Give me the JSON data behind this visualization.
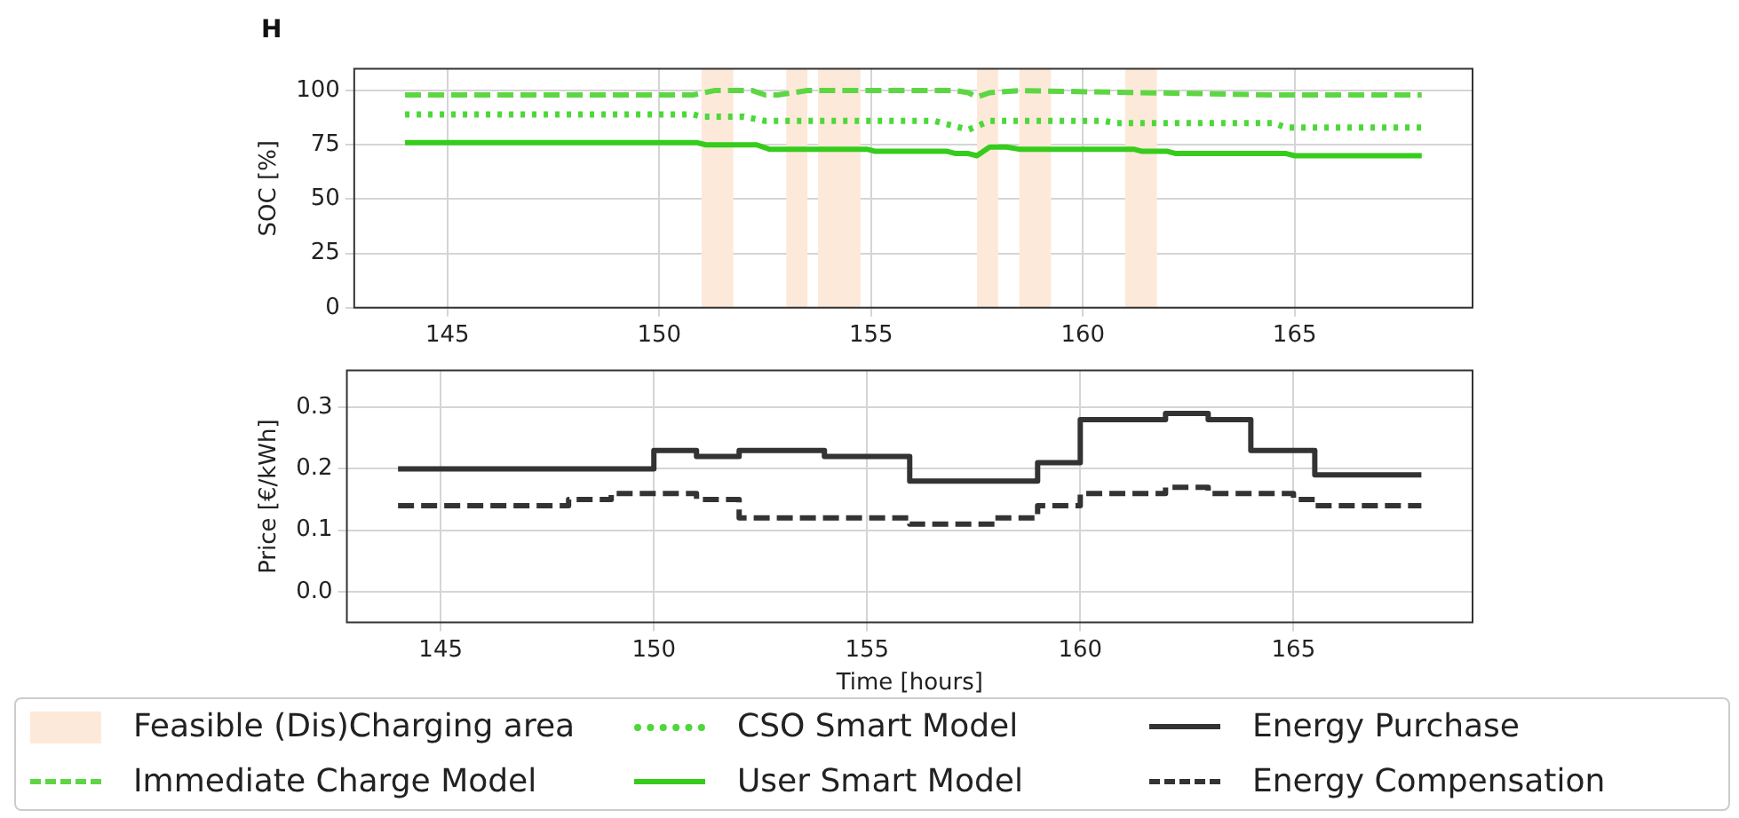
{
  "chart_data": [
    {
      "type": "line",
      "title": "H",
      "ylabel": "SOC [%]",
      "xlim": [
        142.8,
        169.2
      ],
      "xticks": [
        145,
        150,
        155,
        160,
        165
      ],
      "ylim": [
        0,
        110
      ],
      "yticks": [
        0,
        25,
        50,
        75,
        100
      ],
      "grid": true,
      "legend": "bottom",
      "marker": "none",
      "bands": [
        {
          "axis": "x",
          "from": 151.0,
          "to": 151.75,
          "label": "Feasible (Dis)Charging area",
          "color": "#fde9da"
        },
        {
          "axis": "x",
          "from": 153.0,
          "to": 153.5,
          "color": "#fde9da"
        },
        {
          "axis": "x",
          "from": 153.75,
          "to": 154.75,
          "color": "#fde9da"
        },
        {
          "axis": "x",
          "from": 157.5,
          "to": 158.0,
          "color": "#fde9da"
        },
        {
          "axis": "x",
          "from": 158.5,
          "to": 159.25,
          "color": "#fde9da"
        },
        {
          "axis": "x",
          "from": 161.0,
          "to": 161.75,
          "color": "#fde9da"
        }
      ],
      "series": [
        {
          "name": "Immediate Charge Model",
          "color": "#5dd644",
          "line_style": "dashed",
          "x": [
            144,
            150.8,
            151.3,
            152.2,
            152.5,
            152.8,
            153.5,
            157.0,
            157.3,
            157.5,
            157.8,
            158.5,
            164.5,
            168
          ],
          "values": [
            98,
            98,
            100,
            100,
            98,
            98,
            100,
            100,
            99,
            97,
            99,
            100,
            98,
            98
          ]
        },
        {
          "name": "CSO Smart Model",
          "color": "#4cd838",
          "line_style": "dotted",
          "x": [
            144,
            150.8,
            151.0,
            152.0,
            152.5,
            156.5,
            157.3,
            157.8,
            160.5,
            160.8,
            164.5,
            164.8,
            168
          ],
          "values": [
            89,
            89,
            88,
            88,
            86,
            86,
            82,
            86,
            86,
            85,
            85,
            83,
            83
          ]
        },
        {
          "name": "User Smart Model",
          "color": "#36cc1c",
          "line_style": "solid",
          "x": [
            144,
            150.9,
            151.1,
            152.3,
            152.6,
            154.9,
            155.1,
            156.8,
            157.0,
            157.3,
            157.5,
            157.8,
            158.2,
            158.5,
            161.2,
            161.4,
            162.0,
            162.2,
            164.8,
            165.0,
            168
          ],
          "values": [
            76,
            76,
            75,
            75,
            73,
            73,
            72,
            72,
            71,
            71,
            70,
            74,
            74,
            73,
            73,
            72,
            72,
            71,
            71,
            70,
            70
          ]
        }
      ]
    },
    {
      "type": "step",
      "xlabel": "Time [hours]",
      "ylabel": "Price [€/kWh]",
      "xlim": [
        142.8,
        169.2
      ],
      "xticks": [
        145,
        150,
        155,
        160,
        165
      ],
      "ylim": [
        -0.05,
        0.36
      ],
      "yticks": [
        {
          "value": 0,
          "label": "0.0"
        },
        0.1,
        0.2,
        0.3
      ],
      "grid": true,
      "legend": "bottom",
      "marker": "none",
      "series": [
        {
          "name": "Energy Purchase",
          "color": "#333333",
          "line_style": "solid",
          "x": [
            144,
            150,
            151,
            152,
            154,
            156,
            159,
            160,
            162,
            163,
            164,
            165.5,
            168
          ],
          "values": [
            0.2,
            0.23,
            0.22,
            0.23,
            0.22,
            0.18,
            0.21,
            0.28,
            0.29,
            0.28,
            0.23,
            0.19,
            0.19
          ]
        },
        {
          "name": "Energy Compensation",
          "color": "#333333",
          "line_style": "dashed",
          "x": [
            144,
            148,
            149,
            151,
            152,
            156,
            158,
            159,
            160,
            162,
            163,
            165,
            165.5,
            168
          ],
          "values": [
            0.14,
            0.15,
            0.16,
            0.15,
            0.12,
            0.11,
            0.12,
            0.14,
            0.16,
            0.17,
            0.16,
            0.15,
            0.14,
            0.14
          ]
        }
      ]
    }
  ]
}
